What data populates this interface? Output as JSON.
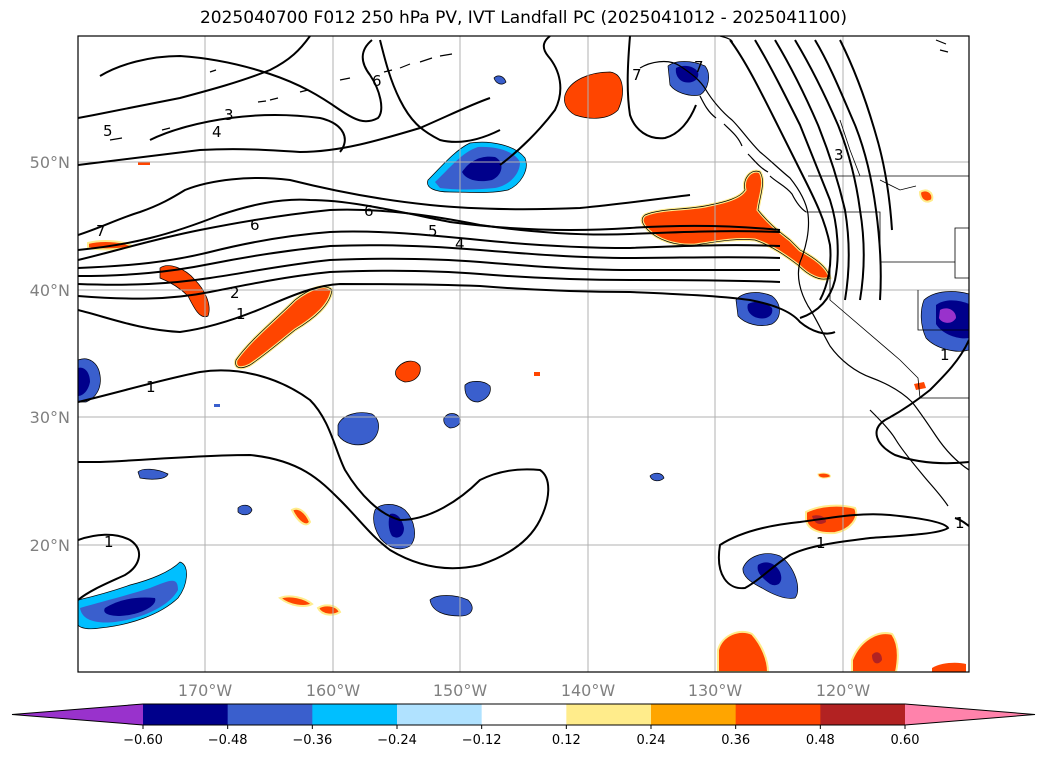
{
  "title": "2025040700 F012 250 hPa PV, IVT Landfall PC (2025041012 - 2025041100)",
  "lat_labels": [
    "50°N",
    "40°N",
    "30°N",
    "20°N"
  ],
  "lon_labels": [
    "170°W",
    "160°W",
    "150°W",
    "140°W",
    "130°W",
    "120°W"
  ],
  "contour_labels": [
    "6",
    "3",
    "4",
    "5",
    "7",
    "6",
    "6",
    "5",
    "4",
    "2",
    "1",
    "1",
    "1",
    "1",
    "1",
    "7",
    "1",
    "3",
    "7"
  ],
  "colorbar": {
    "ticks": [
      "−0.60",
      "−0.48",
      "−0.36",
      "−0.24",
      "−0.12",
      "0.12",
      "0.24",
      "0.36",
      "0.48",
      "0.60"
    ],
    "colors": [
      "#9932CC",
      "#00008B",
      "#3A5FCD",
      "#00BFFF",
      "#B0E2FF",
      "#FFFFFF",
      "#FFEC8B",
      "#FFA500",
      "#FF4500",
      "#B22222",
      "#FF82AB"
    ]
  },
  "legend_colors": {
    "contour": "#000000",
    "grid": "#b0b0b0",
    "coast": "#000000"
  }
}
